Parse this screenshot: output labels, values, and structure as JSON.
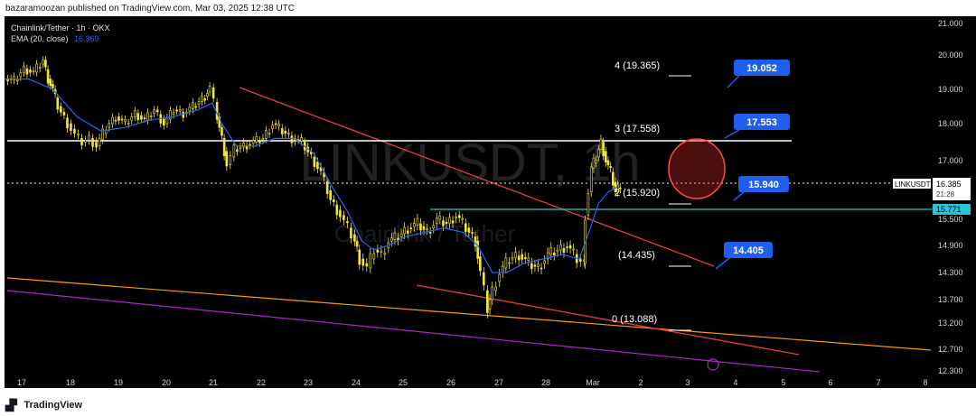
{
  "header": {
    "published_by": "bazaramoozan published on TradingView.com, Mar 03, 2025 12:38 UTC"
  },
  "legend": {
    "symbol_line": "Chainlink/Tether · 1h · OKX",
    "ema_label": "EMA (20, close)",
    "ema_value": "16.369"
  },
  "watermark": {
    "symbol": "LINKUSDT, 1h",
    "name": "Chainlink / Tether"
  },
  "footer": {
    "brand": "TradingView"
  },
  "colors": {
    "background": "#000000",
    "up": "#f5e63b",
    "down": "#f5e63b",
    "ema": "#2962ff",
    "trendline": "#ef3c3c",
    "support_white": "#ffffff",
    "cyan_level": "#26c6da",
    "orange_line": "#ff9800",
    "purple_line": "#b026c9",
    "callout": "#1e5ff0"
  },
  "chart_data": {
    "type": "candlestick",
    "symbol": "LINKUSDT",
    "interval": "1h",
    "exchange": "OKX",
    "ylim": [
      12.2,
      21.0
    ],
    "y_ticks": [
      "21.000",
      "20.000",
      "19.000",
      "18.000",
      "17.000",
      "15.500",
      "14.900",
      "14.300",
      "13.700",
      "13.200",
      "12.700",
      "12.300"
    ],
    "x_ticks": [
      "17",
      "18",
      "19",
      "20",
      "21",
      "22",
      "23",
      "24",
      "25",
      "26",
      "27",
      "28",
      "Mar",
      "2",
      "3",
      "4",
      "5",
      "6",
      "7",
      "8"
    ],
    "last_price": {
      "label": "LINKUSDT",
      "value": "16.385",
      "countdown": "21:28"
    },
    "cyan_level_label": "15.771",
    "fib_levels": [
      {
        "label": "4 (19.365)",
        "value": 19.365
      },
      {
        "label": "3 (17.558)",
        "value": 17.558
      },
      {
        "label": "2 (15.920)",
        "value": 15.92
      },
      {
        "label": "(14.435)",
        "value": 14.435
      },
      {
        "label": "0 (13.088)",
        "value": 13.088
      }
    ],
    "targets": [
      {
        "label": "19.052",
        "value": 19.052
      },
      {
        "label": "17.553",
        "value": 17.553
      },
      {
        "label": "15.940",
        "value": 15.94
      },
      {
        "label": "14.405",
        "value": 14.405
      }
    ],
    "price_series": [
      [
        0,
        19.3
      ],
      [
        0.4,
        19.25
      ],
      [
        0.8,
        19.6
      ],
      [
        1.2,
        19.5
      ],
      [
        1.6,
        19.85
      ],
      [
        1.8,
        19.3
      ],
      [
        2.0,
        19.0
      ],
      [
        2.2,
        18.5
      ],
      [
        2.6,
        18.0
      ],
      [
        2.9,
        17.7
      ],
      [
        3.2,
        17.5
      ],
      [
        3.5,
        17.6
      ],
      [
        3.8,
        17.4
      ],
      [
        4.2,
        17.9
      ],
      [
        4.6,
        18.2
      ],
      [
        5.0,
        18.0
      ],
      [
        5.4,
        18.3
      ],
      [
        5.8,
        18.1
      ],
      [
        6.2,
        18.4
      ],
      [
        6.6,
        18.0
      ],
      [
        7.0,
        18.4
      ],
      [
        7.4,
        18.3
      ],
      [
        7.8,
        18.5
      ],
      [
        8.3,
        18.8
      ],
      [
        8.5,
        19.05
      ],
      [
        8.8,
        18.2
      ],
      [
        9.0,
        17.6
      ],
      [
        9.2,
        16.9
      ],
      [
        9.5,
        17.3
      ],
      [
        9.9,
        17.4
      ],
      [
        10.3,
        17.5
      ],
      [
        10.7,
        17.6
      ],
      [
        11.1,
        18.0
      ],
      [
        11.5,
        17.8
      ],
      [
        11.9,
        17.6
      ],
      [
        12.3,
        17.5
      ],
      [
        12.7,
        17.1
      ],
      [
        13.1,
        16.7
      ],
      [
        13.5,
        16.0
      ],
      [
        13.9,
        15.6
      ],
      [
        14.2,
        15.3
      ],
      [
        14.5,
        15.0
      ],
      [
        14.7,
        14.6
      ],
      [
        15.0,
        14.4
      ],
      [
        15.3,
        14.8
      ],
      [
        15.6,
        14.7
      ],
      [
        15.9,
        15.0
      ],
      [
        16.3,
        15.1
      ],
      [
        16.7,
        15.3
      ],
      [
        17.1,
        15.4
      ],
      [
        17.5,
        15.2
      ],
      [
        17.9,
        15.5
      ],
      [
        18.3,
        15.4
      ],
      [
        18.7,
        15.6
      ],
      [
        19.1,
        15.3
      ],
      [
        19.5,
        15.0
      ],
      [
        19.7,
        14.3
      ],
      [
        20.0,
        13.5
      ],
      [
        20.2,
        13.9
      ],
      [
        20.5,
        14.3
      ],
      [
        20.9,
        14.6
      ],
      [
        21.3,
        14.7
      ],
      [
        21.7,
        14.5
      ],
      [
        22.1,
        14.4
      ],
      [
        22.5,
        14.7
      ],
      [
        22.9,
        14.8
      ],
      [
        23.3,
        14.9
      ],
      [
        23.7,
        14.6
      ],
      [
        24.0,
        14.5
      ],
      [
        24.05,
        15.6
      ],
      [
        24.3,
        16.8
      ],
      [
        24.5,
        17.1
      ],
      [
        24.7,
        17.5
      ],
      [
        24.9,
        17.0
      ],
      [
        25.1,
        16.7
      ],
      [
        25.3,
        16.2
      ],
      [
        25.5,
        16.4
      ]
    ],
    "ema_series": [
      [
        0,
        19.3
      ],
      [
        1.0,
        19.3
      ],
      [
        2.0,
        19.0
      ],
      [
        3.0,
        18.2
      ],
      [
        4.0,
        17.8
      ],
      [
        5.0,
        17.9
      ],
      [
        6.0,
        18.1
      ],
      [
        7.0,
        18.2
      ],
      [
        8.0,
        18.4
      ],
      [
        8.6,
        18.6
      ],
      [
        9.0,
        18.0
      ],
      [
        9.6,
        17.4
      ],
      [
        10.4,
        17.4
      ],
      [
        11.2,
        17.6
      ],
      [
        12.0,
        17.6
      ],
      [
        12.8,
        17.2
      ],
      [
        13.6,
        16.3
      ],
      [
        14.2,
        15.7
      ],
      [
        14.8,
        15.0
      ],
      [
        15.3,
        14.8
      ],
      [
        15.9,
        14.9
      ],
      [
        16.6,
        15.1
      ],
      [
        17.4,
        15.2
      ],
      [
        18.2,
        15.3
      ],
      [
        19.0,
        15.2
      ],
      [
        19.6,
        14.9
      ],
      [
        20.2,
        14.3
      ],
      [
        20.8,
        14.3
      ],
      [
        21.5,
        14.5
      ],
      [
        22.3,
        14.6
      ],
      [
        23.1,
        14.7
      ],
      [
        23.8,
        14.6
      ],
      [
        24.2,
        15.2
      ],
      [
        24.6,
        15.9
      ],
      [
        25.0,
        16.2
      ],
      [
        25.5,
        16.37
      ]
    ],
    "x_domain": [
      0,
      38.4
    ]
  }
}
